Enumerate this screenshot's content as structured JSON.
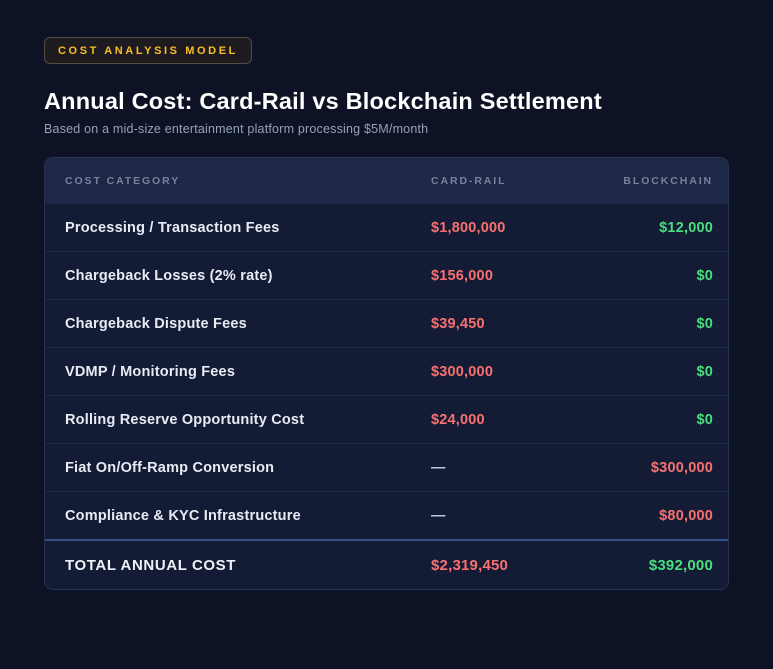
{
  "page": {
    "badge": "COST ANALYSIS MODEL",
    "title": "Annual Cost: Card-Rail vs Blockchain Settlement",
    "subtitle": "Based on a mid-size entertainment platform processing $5M/month"
  },
  "colors": {
    "accent_amber": "#fbbf24",
    "negative_red": "#f87171",
    "positive_green": "#4ade80"
  },
  "table": {
    "columns": [
      "COST CATEGORY",
      "CARD-RAIL",
      "BLOCKCHAIN"
    ],
    "rows": [
      {
        "category": "Processing / Transaction Fees",
        "card_rail": "$1,800,000",
        "card_rail_kind": "neg",
        "blockchain": "$12,000",
        "blockchain_kind": "pos"
      },
      {
        "category": "Chargeback Losses (2% rate)",
        "card_rail": "$156,000",
        "card_rail_kind": "neg",
        "blockchain": "$0",
        "blockchain_kind": "pos"
      },
      {
        "category": "Chargeback Dispute Fees",
        "card_rail": "$39,450",
        "card_rail_kind": "neg",
        "blockchain": "$0",
        "blockchain_kind": "pos"
      },
      {
        "category": "VDMP / Monitoring Fees",
        "card_rail": "$300,000",
        "card_rail_kind": "neg",
        "blockchain": "$0",
        "blockchain_kind": "pos"
      },
      {
        "category": "Rolling Reserve Opportunity Cost",
        "card_rail": "$24,000",
        "card_rail_kind": "neg",
        "blockchain": "$0",
        "blockchain_kind": "pos"
      },
      {
        "category": "Fiat On/Off-Ramp Conversion",
        "card_rail": "—",
        "card_rail_kind": "dash",
        "blockchain": "$300,000",
        "blockchain_kind": "neg"
      },
      {
        "category": "Compliance & KYC Infrastructure",
        "card_rail": "—",
        "card_rail_kind": "dash",
        "blockchain": "$80,000",
        "blockchain_kind": "neg"
      }
    ],
    "total": {
      "category": "TOTAL ANNUAL COST",
      "card_rail": "$2,319,450",
      "card_rail_kind": "neg",
      "blockchain": "$392,000",
      "blockchain_kind": "pos"
    }
  }
}
